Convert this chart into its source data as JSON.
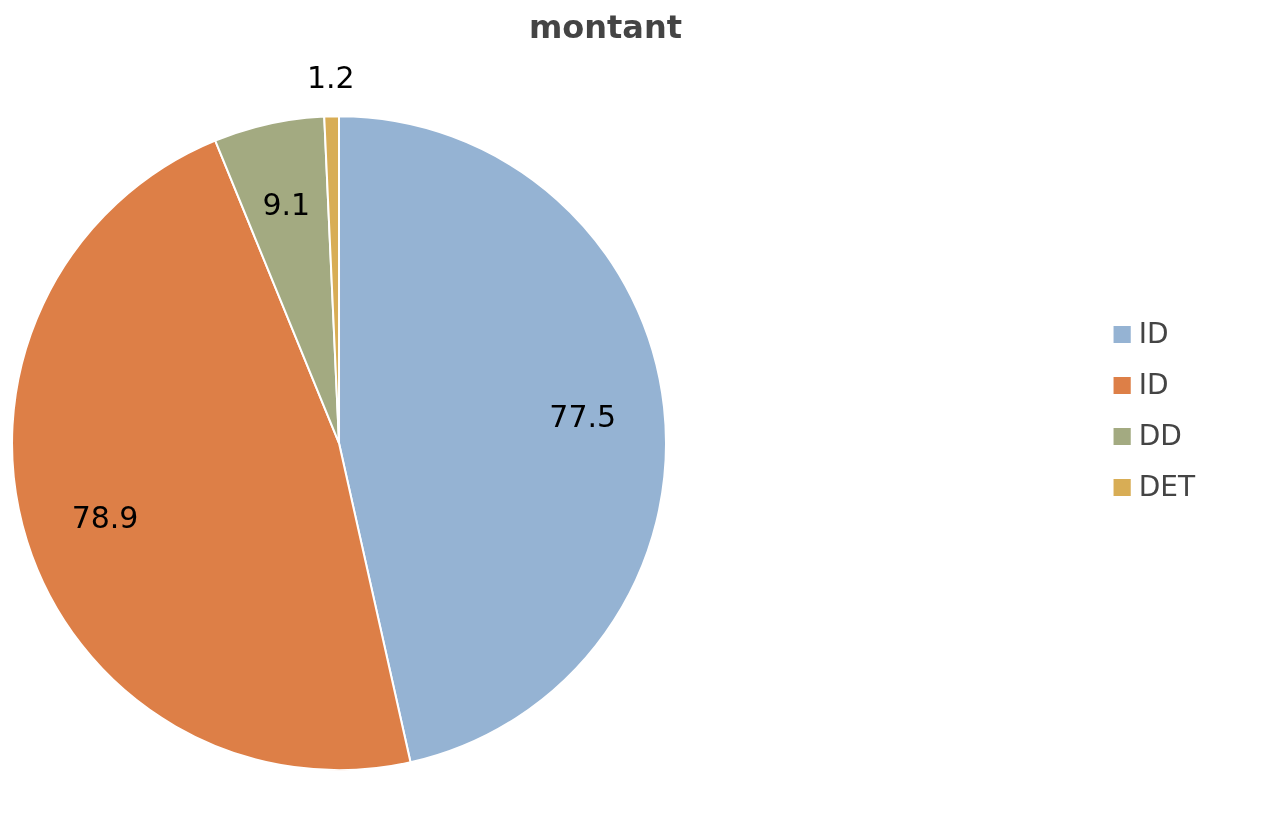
{
  "chart_data": {
    "type": "pie",
    "title": "montant",
    "categories": [
      "ID",
      "ID",
      "DD",
      "DET"
    ],
    "values": [
      77.5,
      78.9,
      9.1,
      1.2
    ],
    "colors": [
      "#95b3d3",
      "#dd7f47",
      "#a3aa81",
      "#d8ad55"
    ],
    "data_labels": true,
    "legend": "right"
  }
}
